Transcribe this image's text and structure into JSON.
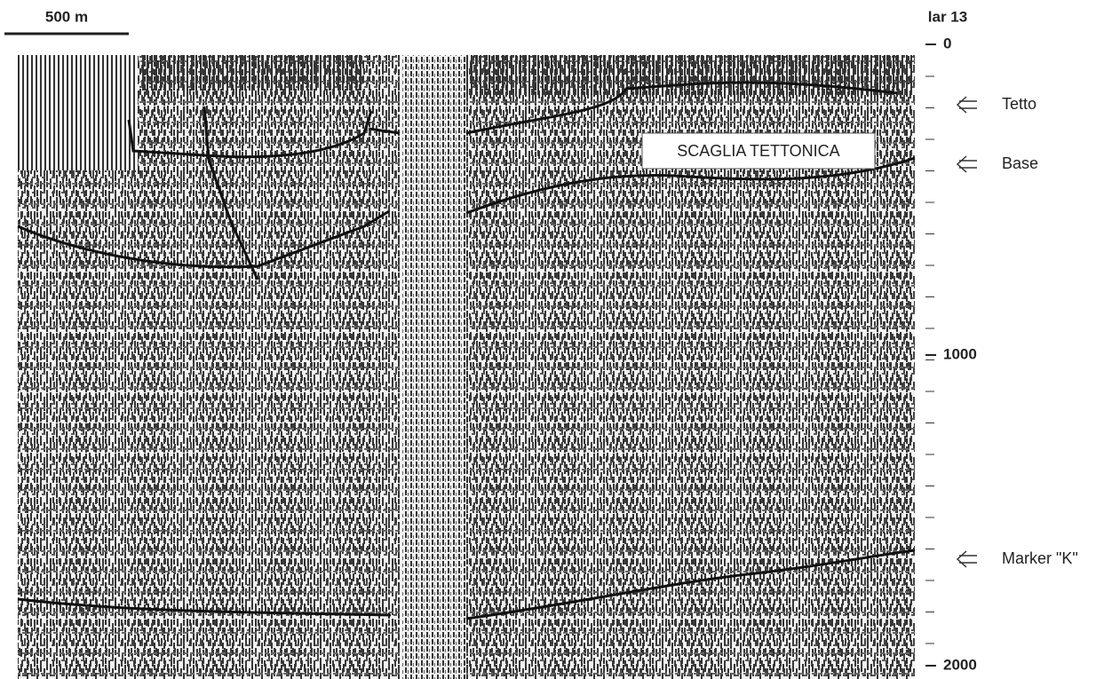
{
  "scale_bar": "500 m",
  "line_name": "lar 13",
  "depth_axis": {
    "range": [
      0,
      2000
    ],
    "ticks": [
      0,
      1000,
      2000
    ]
  },
  "annotations": {
    "box": "SCAGLIA TETTONICA",
    "labels": [
      "Tetto",
      "Base",
      "Marker \"K\""
    ]
  }
}
